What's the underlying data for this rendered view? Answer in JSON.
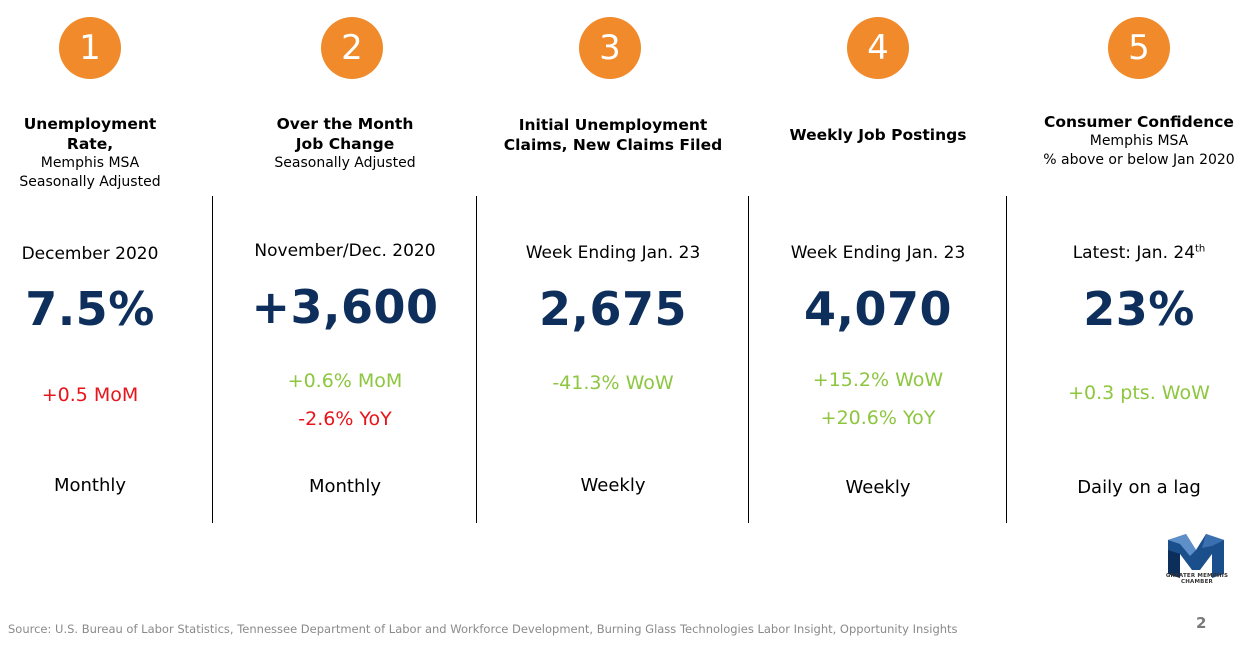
{
  "colors": {
    "badge": "#F08A2A",
    "big_number": "#0E2F5B",
    "positive": "#8DC63F",
    "negative": "#E8141B"
  },
  "columns": [
    {
      "number": "1",
      "title": "Unemployment Rate,",
      "sub1": "Memphis MSA",
      "sub2": "Seasonally Adjusted",
      "period": "December 2020",
      "value": "7.5%",
      "change1": "+0.5 MoM",
      "change2": "",
      "frequency": "Monthly"
    },
    {
      "number": "2",
      "title": "Over the Month",
      "title2": "Job Change",
      "sub1": "Seasonally Adjusted",
      "period": "November/Dec. 2020",
      "value": "+3,600",
      "change1": "+0.6% MoM",
      "change2": "-2.6% YoY",
      "frequency": "Monthly"
    },
    {
      "number": "3",
      "title": "Initial Unemployment",
      "title2": "Claims, New Claims Filed",
      "period": "Week Ending Jan. 23",
      "value": "2,675",
      "change1": "-41.3% WoW",
      "frequency": "Weekly"
    },
    {
      "number": "4",
      "title": "Weekly Job Postings",
      "period": "Week Ending Jan. 23",
      "value": "4,070",
      "change1": "+15.2% WoW",
      "change2": "+20.6% YoY",
      "frequency": "Weekly"
    },
    {
      "number": "5",
      "title": "Consumer Confidence",
      "sub1": "Memphis MSA",
      "sub2": "% above or below Jan 2020",
      "period": "Latest: Jan. 24",
      "period_sup": "th",
      "value": "23%",
      "change1": "+0.3 pts. WoW",
      "frequency": "Daily on a lag"
    }
  ],
  "footer": {
    "source": "Source: U.S. Bureau of Labor Statistics, Tennessee Department of Labor and Workforce Development, Burning Glass Technologies Labor Insight, Opportunity Insights",
    "page_number": "2",
    "logo_text": "GREATER MEMPHIS CHAMBER",
    "logo_icon": "m-logo-icon"
  }
}
